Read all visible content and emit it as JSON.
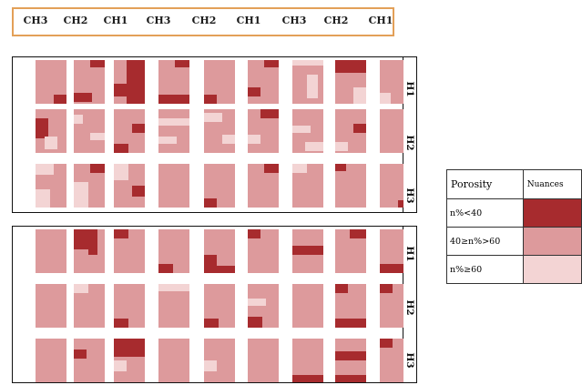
{
  "header": {
    "columns": [
      "CH3",
      "CH2",
      "CH1",
      "CH3",
      "CH2",
      "CH1",
      "CH3",
      "CH2",
      "CH1"
    ]
  },
  "colors": {
    "dark": "#a72b2e",
    "medium": "#dd9a9c",
    "light": "#f3d4d4",
    "header_border": "#e3a058"
  },
  "row_labels": [
    "H1",
    "H2",
    "H3"
  ],
  "legend": {
    "header_porosity": "Porosity",
    "header_nuances": "Nuances",
    "rows": [
      {
        "label": "n%<40",
        "color": "#a72b2e"
      },
      {
        "label": "40≥n%>60",
        "color": "#dd9a9c"
      },
      {
        "label": "n%≥60",
        "color": "#f3d4d4"
      }
    ]
  }
}
